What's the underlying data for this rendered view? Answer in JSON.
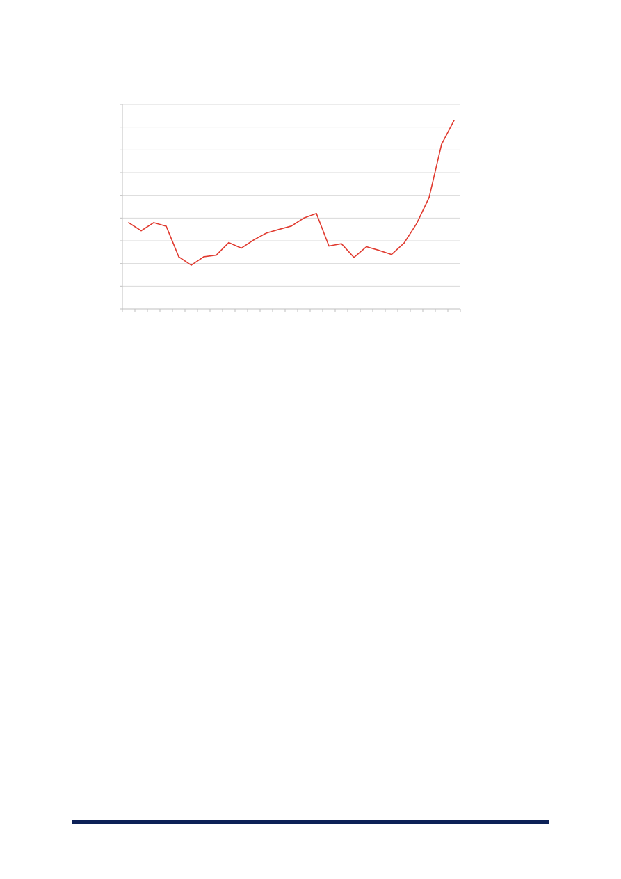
{
  "chart_data": {
    "type": "line",
    "title": "",
    "xlabel": "",
    "ylabel": "",
    "x": [
      1,
      2,
      3,
      4,
      5,
      6,
      7,
      8,
      9,
      10,
      11,
      12,
      13,
      14,
      15,
      16,
      17,
      18,
      19,
      20,
      21,
      22,
      23,
      24,
      25,
      26,
      27
    ],
    "series": [
      {
        "color": "#e03a2f",
        "values": [
          3.8,
          3.44,
          3.8,
          3.64,
          2.3,
          1.93,
          2.3,
          2.37,
          2.92,
          2.68,
          3.04,
          3.34,
          3.5,
          3.65,
          4.0,
          4.2,
          2.77,
          2.87,
          2.27,
          2.74,
          2.58,
          2.4,
          2.9,
          3.75,
          4.9,
          7.25,
          8.3
        ]
      }
    ],
    "ylim": [
      0,
      9
    ],
    "yticks": [
      0,
      1,
      2,
      3,
      4,
      5,
      6,
      7,
      8,
      9
    ],
    "grid": true,
    "legend": "none",
    "gridline_color": "#d9d9d9",
    "axis_color": "#bfbfbf"
  },
  "page": {
    "footer_bar_color": "#0d2157"
  }
}
